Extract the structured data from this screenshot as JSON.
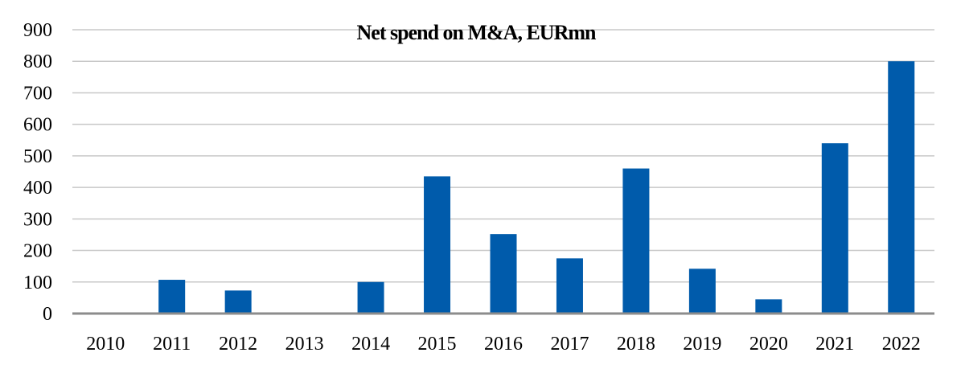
{
  "chart_data": {
    "type": "bar",
    "title": "Net spend on M&A, EURmn",
    "xlabel": "",
    "ylabel": "",
    "categories": [
      "2010",
      "2011",
      "2012",
      "2013",
      "2014",
      "2015",
      "2016",
      "2017",
      "2018",
      "2019",
      "2020",
      "2021",
      "2022"
    ],
    "values": [
      0,
      107,
      73,
      0,
      100,
      435,
      252,
      175,
      460,
      142,
      45,
      540,
      800
    ],
    "ylim": [
      0,
      900
    ],
    "yticks": [
      "0",
      "100",
      "200",
      "300",
      "400",
      "500",
      "600",
      "700",
      "800",
      "900"
    ],
    "grid": true,
    "legend": "none",
    "bar_color": "#005bab"
  }
}
